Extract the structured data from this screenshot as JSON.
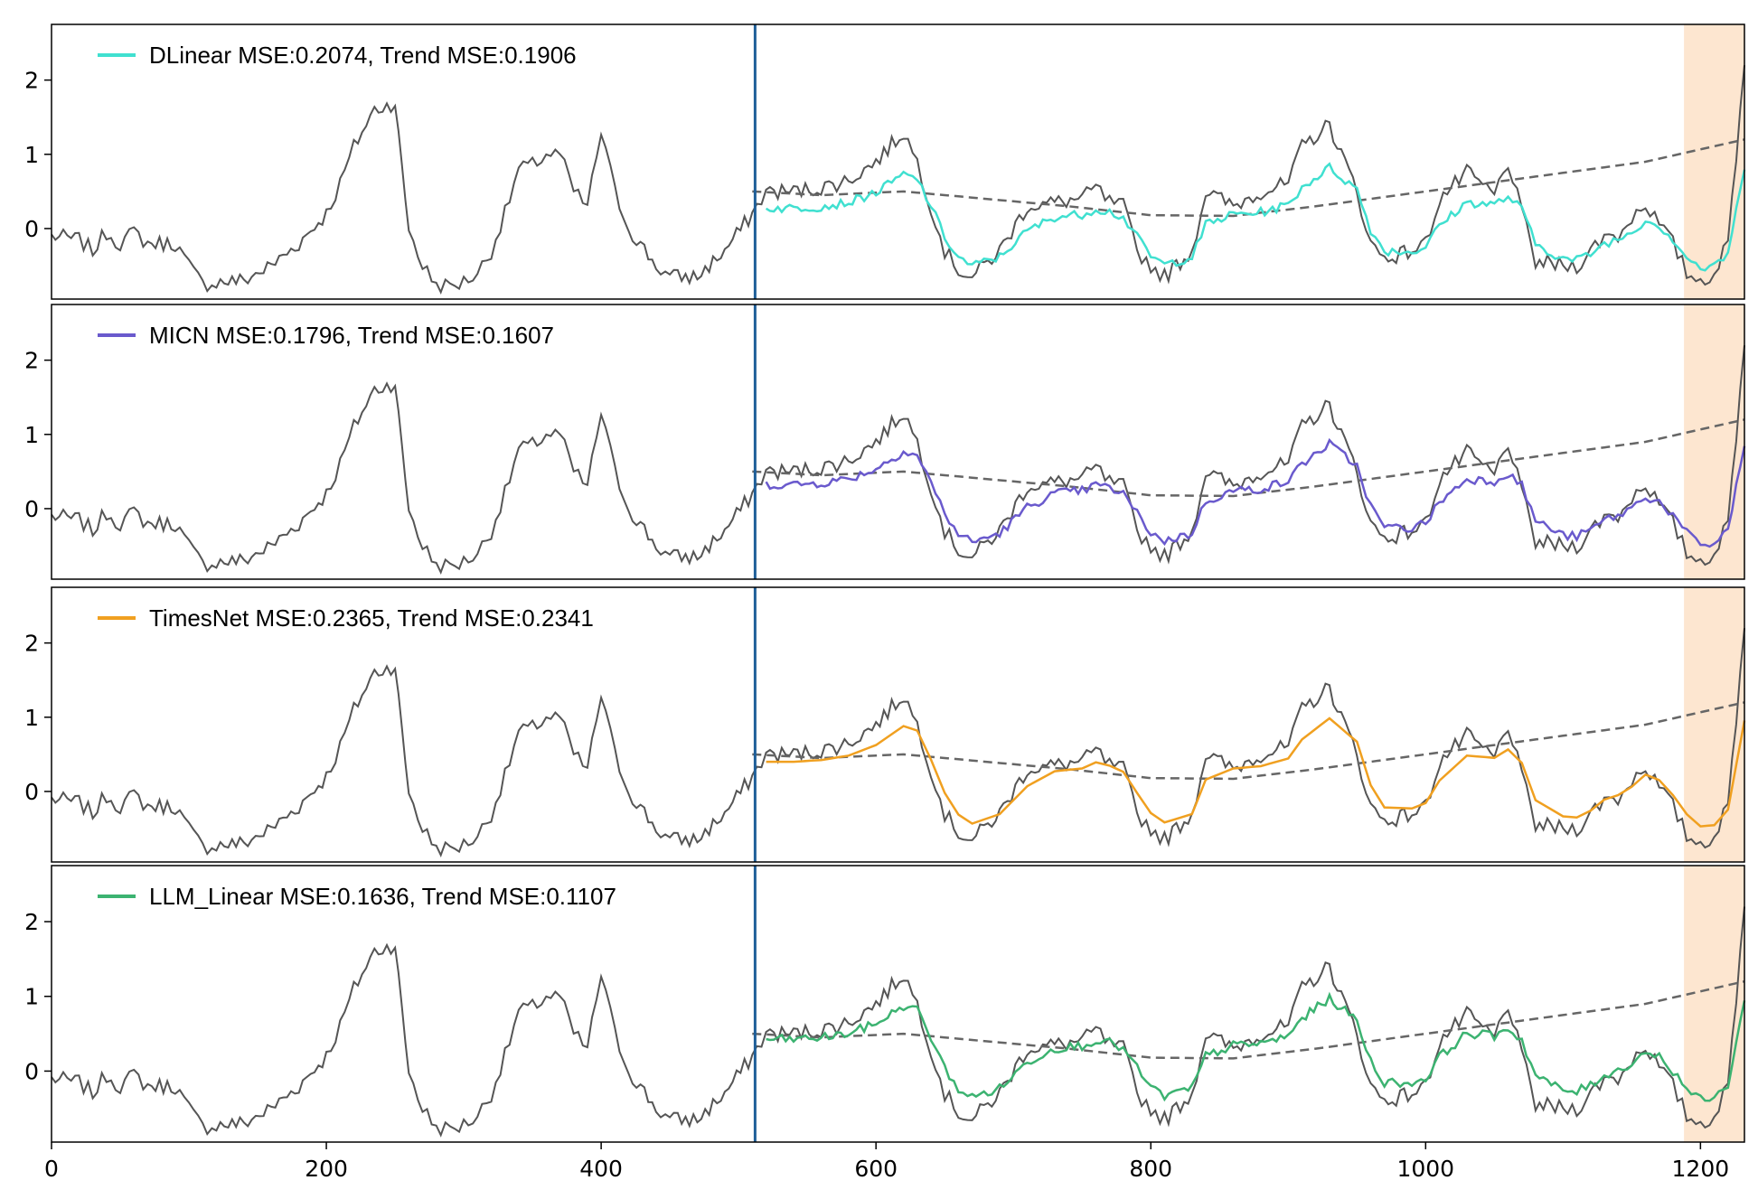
{
  "chart_data": {
    "type": "line",
    "shared_x_axis": {
      "ticks": [
        0,
        200,
        400,
        600,
        800,
        1000,
        1200
      ],
      "range": [
        0,
        1232
      ]
    },
    "input_end_x": 512,
    "highlight_region": {
      "x": [
        1188,
        1232
      ],
      "color": "#FDE6D0"
    },
    "panels": [
      {
        "id": "dlinear",
        "legend": "DLinear MSE:0.2074, Trend MSE:0.1906",
        "model": "DLinear",
        "color": "#40E0D0",
        "style": "noisy"
      },
      {
        "id": "micn",
        "legend": "MICN MSE:0.1796, Trend MSE:0.1607",
        "model": "MICN",
        "color": "#6A5ACD",
        "style": "noisy"
      },
      {
        "id": "timesnet",
        "legend": "TimesNet MSE:0.2365, Trend MSE:0.2341",
        "model": "TimesNet",
        "color": "#F0A020",
        "style": "smooth"
      },
      {
        "id": "llm_linear",
        "legend": "LLM_Linear MSE:0.1636, Trend MSE:0.1107",
        "model": "LLM_Linear",
        "color": "#3CB371",
        "style": "noisy"
      }
    ],
    "y_ticks": [
      0,
      1,
      2
    ],
    "y_range": [
      -0.95,
      2.75
    ],
    "ground_truth": {
      "color": "#555555",
      "points": [
        [
          0,
          -0.1
        ],
        [
          20,
          -0.15
        ],
        [
          30,
          -0.3
        ],
        [
          40,
          -0.05
        ],
        [
          50,
          -0.2
        ],
        [
          60,
          -0.05
        ],
        [
          70,
          -0.2
        ],
        [
          90,
          -0.2
        ],
        [
          100,
          -0.5
        ],
        [
          110,
          -0.75
        ],
        [
          120,
          -0.72
        ],
        [
          140,
          -0.7
        ],
        [
          160,
          -0.5
        ],
        [
          180,
          -0.2
        ],
        [
          200,
          0.2
        ],
        [
          210,
          0.6
        ],
        [
          220,
          1.1
        ],
        [
          235,
          1.6
        ],
        [
          250,
          1.7
        ],
        [
          255,
          0.8
        ],
        [
          260,
          0.0
        ],
        [
          270,
          -0.5
        ],
        [
          280,
          -0.75
        ],
        [
          290,
          -0.78
        ],
        [
          300,
          -0.72
        ],
        [
          310,
          -0.6
        ],
        [
          320,
          -0.3
        ],
        [
          330,
          0.2
        ],
        [
          340,
          0.8
        ],
        [
          350,
          0.85
        ],
        [
          360,
          1.0
        ],
        [
          370,
          1.0
        ],
        [
          380,
          0.5
        ],
        [
          390,
          0.3
        ],
        [
          400,
          1.3
        ],
        [
          410,
          0.5
        ],
        [
          420,
          0.0
        ],
        [
          440,
          -0.5
        ],
        [
          450,
          -0.65
        ],
        [
          470,
          -0.65
        ],
        [
          490,
          -0.3
        ],
        [
          510,
          0.2
        ],
        [
          520,
          0.5
        ],
        [
          540,
          0.5
        ],
        [
          560,
          0.55
        ],
        [
          580,
          0.65
        ],
        [
          600,
          0.9
        ],
        [
          620,
          1.3
        ],
        [
          630,
          0.9
        ],
        [
          640,
          0.3
        ],
        [
          650,
          -0.3
        ],
        [
          660,
          -0.55
        ],
        [
          670,
          -0.65
        ],
        [
          690,
          -0.3
        ],
        [
          710,
          0.3
        ],
        [
          730,
          0.35
        ],
        [
          750,
          0.4
        ],
        [
          760,
          0.55
        ],
        [
          770,
          0.35
        ],
        [
          780,
          0.3
        ],
        [
          790,
          -0.3
        ],
        [
          800,
          -0.5
        ],
        [
          810,
          -0.65
        ],
        [
          830,
          -0.3
        ],
        [
          840,
          0.5
        ],
        [
          860,
          0.3
        ],
        [
          880,
          0.5
        ],
        [
          900,
          0.6
        ],
        [
          910,
          1.1
        ],
        [
          930,
          1.4
        ],
        [
          950,
          0.5
        ],
        [
          960,
          -0.2
        ],
        [
          970,
          -0.4
        ],
        [
          990,
          -0.3
        ],
        [
          1000,
          -0.2
        ],
        [
          1010,
          0.4
        ],
        [
          1030,
          0.75
        ],
        [
          1050,
          0.45
        ],
        [
          1060,
          0.9
        ],
        [
          1070,
          0.2
        ],
        [
          1080,
          -0.45
        ],
        [
          1100,
          -0.5
        ],
        [
          1110,
          -0.5
        ],
        [
          1120,
          -0.3
        ],
        [
          1130,
          -0.1
        ],
        [
          1140,
          -0.1
        ],
        [
          1150,
          0.15
        ],
        [
          1160,
          0.35
        ],
        [
          1170,
          0.05
        ],
        [
          1180,
          -0.2
        ],
        [
          1190,
          -0.6
        ],
        [
          1200,
          -0.7
        ],
        [
          1210,
          -0.6
        ],
        [
          1220,
          -0.2
        ],
        [
          1232,
          2.2
        ]
      ]
    },
    "trend": {
      "color": "#666666",
      "points": [
        [
          510,
          0.5
        ],
        [
          560,
          0.45
        ],
        [
          620,
          0.5
        ],
        [
          680,
          0.4
        ],
        [
          740,
          0.3
        ],
        [
          800,
          0.18
        ],
        [
          860,
          0.17
        ],
        [
          920,
          0.3
        ],
        [
          980,
          0.45
        ],
        [
          1040,
          0.6
        ],
        [
          1100,
          0.75
        ],
        [
          1160,
          0.9
        ],
        [
          1232,
          1.2
        ]
      ]
    }
  }
}
